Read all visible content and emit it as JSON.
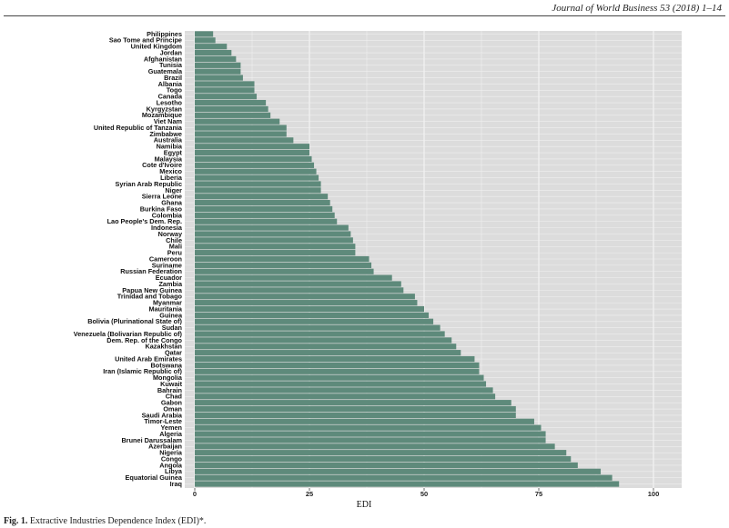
{
  "header": {
    "journal": "Journal of World Business 53 (2018) 1–14"
  },
  "caption": {
    "label": "Fig. 1.",
    "text": "Extractive Industries Dependence Index (EDI)*."
  },
  "colors": {
    "bar": "#5e8a7b",
    "panel": "#dcdcdc",
    "grid": "#f0f0f0"
  },
  "chart_data": {
    "type": "bar",
    "orientation": "horizontal",
    "xlabel": "EDI",
    "xlim": [
      0,
      105
    ],
    "xticks": [
      0,
      25,
      50,
      75,
      100
    ],
    "grid": true,
    "categories": [
      "Philippines",
      "Sao Tome and Principe",
      "United Kingdom",
      "Jordan",
      "Afghanistan",
      "Tunisia",
      "Guatemala",
      "Brazil",
      "Albania",
      "Togo",
      "Canada",
      "Lesotho",
      "Kyrgyzstan",
      "Mozambique",
      "Viet Nam",
      "United Republic of Tanzania",
      "Zimbabwe",
      "Australia",
      "Namibia",
      "Egypt",
      "Malaysia",
      "Cote d'Ivoire",
      "Mexico",
      "Liberia",
      "Syrian Arab Republic",
      "Niger",
      "Sierra Leone",
      "Ghana",
      "Burkina Faso",
      "Colombia",
      "Lao People's Dem. Rep.",
      "Indonesia",
      "Norway",
      "Chile",
      "Mali",
      "Peru",
      "Cameroon",
      "Suriname",
      "Russian Federation",
      "Ecuador",
      "Zambia",
      "Papua New Guinea",
      "Trinidad and Tobago",
      "Myanmar",
      "Mauritania",
      "Guinea",
      "Bolivia (Plurinational State of)",
      "Sudan",
      "Venezuela (Bolivarian Republic of)",
      "Dem. Rep. of the Congo",
      "Kazakhstan",
      "Qatar",
      "United Arab Emirates",
      "Botswana",
      "Iran (Islamic Republic of)",
      "Mongolia",
      "Kuwait",
      "Bahrain",
      "Chad",
      "Gabon",
      "Oman",
      "Saudi Arabia",
      "Timor-Leste",
      "Yemen",
      "Algeria",
      "Brunei Darussalam",
      "Azerbaijan",
      "Nigeria",
      "Congo",
      "Angola",
      "Libya",
      "Equatorial Guinea",
      "Iraq"
    ],
    "values": [
      4,
      4.5,
      7,
      8,
      9,
      10,
      10,
      10.5,
      13,
      13,
      13.5,
      15.5,
      16,
      16.5,
      18.5,
      20,
      20,
      21.5,
      25,
      25,
      25.5,
      26,
      26.5,
      27,
      27.5,
      27.5,
      29,
      29.5,
      30,
      30.5,
      31,
      33.5,
      34,
      34.5,
      35,
      35,
      38,
      38.5,
      39,
      43,
      45,
      45.5,
      48,
      48.5,
      50,
      51,
      52,
      53.5,
      54.5,
      56,
      57,
      58,
      61,
      62,
      62,
      63,
      63.5,
      65,
      65.5,
      69,
      70,
      70,
      74,
      75.5,
      76.5,
      76.5,
      78.5,
      81,
      82,
      83.5,
      88.5,
      91,
      92.5
    ]
  }
}
